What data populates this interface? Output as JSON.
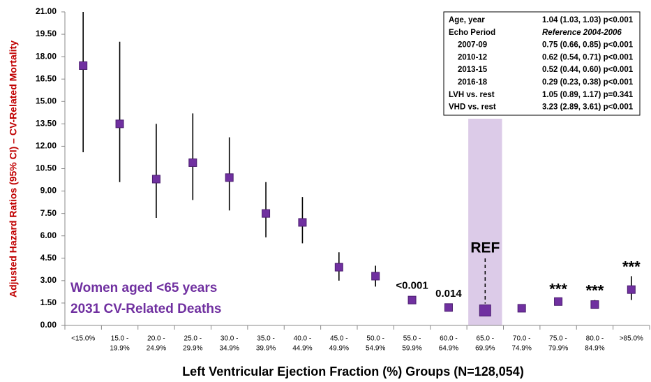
{
  "chart_data": {
    "type": "forest",
    "y_axis_label": "Adjusted Hazard Ratios (95% CI) – CV-Related Mortality",
    "x_axis_label": "Left Ventricular Ejection Fraction (%) Groups (N=128,054)",
    "categories": [
      [
        "<15.0%"
      ],
      [
        "15.0 -",
        "19.9%"
      ],
      [
        "20.0 -",
        "24.9%"
      ],
      [
        "25.0 -",
        "29.9%"
      ],
      [
        "30.0 -",
        "34.9%"
      ],
      [
        "35.0 -",
        "39.9%"
      ],
      [
        "40.0 -",
        "44.9%"
      ],
      [
        "45.0 -",
        "49.9%"
      ],
      [
        "50.0 -",
        "54.9%"
      ],
      [
        "55.0 -",
        "59.9%"
      ],
      [
        "60.0 -",
        "64.9%"
      ],
      [
        "65.0 -",
        "69.9%"
      ],
      [
        "70.0 -",
        "74.9%"
      ],
      [
        "75.0 -",
        "79.9%"
      ],
      [
        "80.0 -",
        "84.9%"
      ],
      [
        ">85.0%"
      ]
    ],
    "values": [
      17.4,
      13.5,
      9.8,
      10.9,
      9.9,
      7.5,
      6.9,
      3.9,
      3.3,
      1.7,
      1.2,
      1.0,
      1.15,
      1.6,
      1.4,
      2.4
    ],
    "lower": [
      11.6,
      9.6,
      7.2,
      8.4,
      7.7,
      5.9,
      5.5,
      3.0,
      2.6,
      1.5,
      1.05,
      null,
      1.0,
      1.4,
      1.2,
      1.7
    ],
    "upper": [
      21.0,
      19.0,
      13.5,
      14.2,
      12.6,
      9.6,
      8.6,
      4.9,
      4.0,
      1.9,
      1.35,
      null,
      1.3,
      1.8,
      1.7,
      3.3
    ],
    "annotations": [
      null,
      null,
      null,
      null,
      null,
      null,
      null,
      null,
      null,
      "<0.001",
      "0.014",
      "REF",
      null,
      "***",
      "***",
      "***"
    ],
    "reference_index": 11,
    "color": "#7030a0",
    "reference_band_color": "#dccbe8",
    "ylim": [
      0,
      21
    ],
    "yticks": [
      {
        "value": 0,
        "label": "0.00"
      },
      {
        "value": 1.5,
        "label": "1.50"
      },
      {
        "value": 3,
        "label": "3.00"
      },
      {
        "value": 4.5,
        "label": "4.50"
      },
      {
        "value": 6,
        "label": "6.00"
      },
      {
        "value": 7.5,
        "label": "7.50"
      },
      {
        "value": 9,
        "label": "9.00"
      },
      {
        "value": 10.5,
        "label": "10.50"
      },
      {
        "value": 12,
        "label": "12.00"
      },
      {
        "value": 13.5,
        "label": "13.50"
      },
      {
        "value": 15,
        "label": "15.00"
      },
      {
        "value": 16.5,
        "label": "16.50"
      },
      {
        "value": 18,
        "label": "18.00"
      },
      {
        "value": 19.5,
        "label": "19.50"
      },
      {
        "value": 21,
        "label": "21.00"
      }
    ],
    "text_box": [
      "Women aged <65 years",
      "2031 CV-Related Deaths"
    ],
    "inset_table": [
      [
        "Age, year",
        "1.04 (1.03, 1.03) p<0.001"
      ],
      [
        "Echo Period",
        "Reference 2004-2006"
      ],
      [
        "2007-09",
        "0.75 (0.66, 0.85) p<0.001"
      ],
      [
        "2010-12",
        "0.62 (0.54, 0.71) p<0.001"
      ],
      [
        "2013-15",
        "0.52 (0.44, 0.60) p<0.001"
      ],
      [
        "2016-18",
        "0.29 (0.23, 0.38) p<0.001"
      ],
      [
        "LVH vs. rest",
        "1.05 (0.89, 1.17) p=0.341"
      ],
      [
        "VHD vs. rest",
        "3.23 (2.89, 3.61) p<0.001"
      ]
    ]
  }
}
